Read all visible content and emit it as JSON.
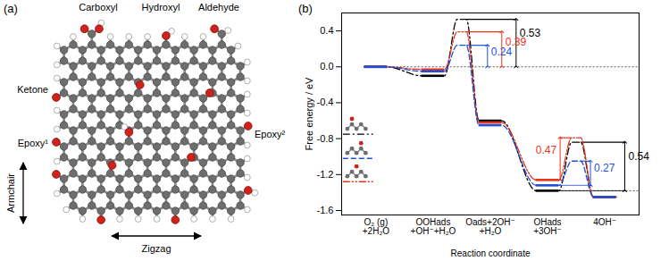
{
  "panel_a": {
    "label": "(a)",
    "functional_groups": [
      "Carboxyl",
      "Hydroxyl",
      "Aldehyde",
      "Ketone",
      "Epoxy¹",
      "Epoxy²"
    ],
    "directions": [
      "Armchair",
      "Zigzag"
    ]
  },
  "chart_data": {
    "type": "line",
    "title": "(b)",
    "x_label": "Reaction coordinate",
    "y_label": "Free energy / eV",
    "categories": [
      "O₂ (g)\n+2H₂O",
      "OOHads\n+OH⁻+H₂O",
      "Oads+2OH⁻\n+H₂O",
      "OHads\n+3OH⁻",
      "4OH⁻"
    ],
    "ylim": [
      -1.65,
      0.6
    ],
    "yticks": [
      -1.6,
      -1.2,
      -0.8,
      -0.4,
      {
        "value": 0,
        "label": "0.0"
      },
      0.4
    ],
    "series": [
      {
        "color": "#000000",
        "line_style": "dashdot",
        "values": [
          0,
          -0.1,
          -0.6,
          -1.38,
          -1.45
        ],
        "transition_states": [
          0.53,
          -0.84
        ],
        "barriers": [
          0.53,
          0.54
        ]
      },
      {
        "color": "#e8331c",
        "line_style": "dashdotdot",
        "values": [
          0,
          -0.03,
          -0.62,
          -1.26,
          -1.45
        ],
        "transition_states": [
          0.39,
          -0.79
        ],
        "barriers": [
          0.39,
          0.47
        ]
      },
      {
        "color": "#1f4fd8",
        "line_style": "dashed",
        "values": [
          0,
          -0.05,
          -0.65,
          -1.32,
          -1.45
        ],
        "transition_states": [
          0.24,
          -1.05
        ],
        "barriers": [
          0.24,
          0.27
        ]
      }
    ]
  }
}
